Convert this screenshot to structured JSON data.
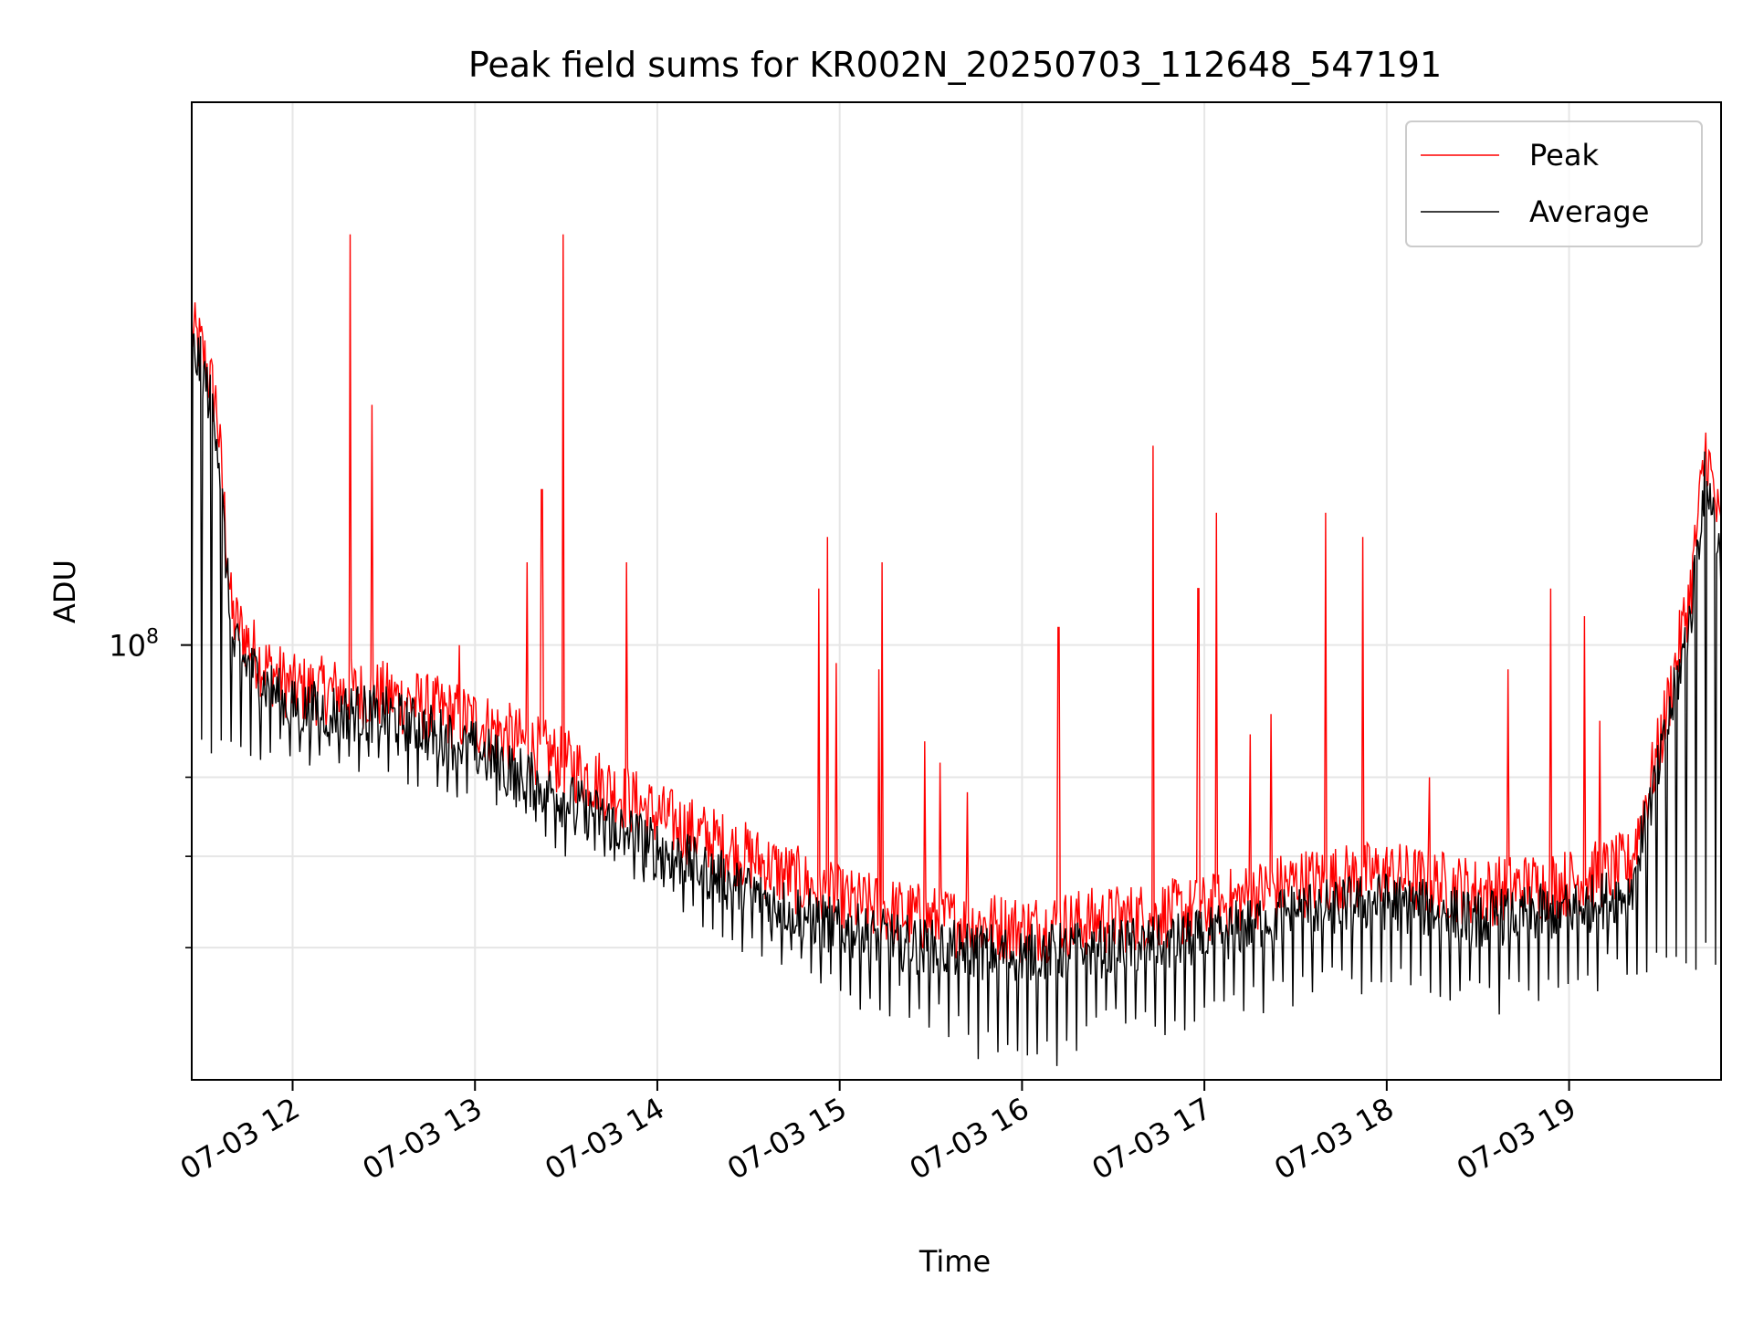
{
  "chart_data": {
    "type": "line",
    "title": "Peak field sums for KR002N_20250703_112648_547191",
    "xlabel": "Time",
    "ylabel": "ADU",
    "y_scale": "log",
    "y_tick_label": {
      "base": "10",
      "exponent": "8",
      "value": 100000000
    },
    "y_minor_ticks": [
      60000000,
      70000000,
      80000000
    ],
    "ylim": [
      48000000,
      250000000
    ],
    "xlim": [
      "2025-07-03 11:26:48",
      "2025-07-03 19:50:00"
    ],
    "x_ticks": [
      {
        "label": "07-03 12",
        "time": "2025-07-03 12:00"
      },
      {
        "label": "07-03 13",
        "time": "2025-07-03 13:00"
      },
      {
        "label": "07-03 14",
        "time": "2025-07-03 14:00"
      },
      {
        "label": "07-03 15",
        "time": "2025-07-03 15:00"
      },
      {
        "label": "07-03 16",
        "time": "2025-07-03 16:00"
      },
      {
        "label": "07-03 17",
        "time": "2025-07-03 17:00"
      },
      {
        "label": "07-03 18",
        "time": "2025-07-03 18:00"
      },
      {
        "label": "07-03 19",
        "time": "2025-07-03 19:00"
      }
    ],
    "grid": true,
    "legend_position": "top-right",
    "series": [
      {
        "name": "Peak",
        "color": "#ff0000",
        "baseline": [
          [
            "2025-07-03 11:26:48",
            170000000
          ],
          [
            "2025-07-03 11:30",
            165000000
          ],
          [
            "2025-07-03 11:35",
            150000000
          ],
          [
            "2025-07-03 11:40",
            105000000
          ],
          [
            "2025-07-03 11:50",
            97000000
          ],
          [
            "2025-07-03 12:00",
            93000000
          ],
          [
            "2025-07-03 12:30",
            92000000
          ],
          [
            "2025-07-03 13:00",
            88000000
          ],
          [
            "2025-07-03 13:30",
            82000000
          ],
          [
            "2025-07-03 14:00",
            75000000
          ],
          [
            "2025-07-03 14:30",
            70000000
          ],
          [
            "2025-07-03 15:00",
            65000000
          ],
          [
            "2025-07-03 15:30",
            63000000
          ],
          [
            "2025-07-03 16:00",
            62000000
          ],
          [
            "2025-07-03 16:30",
            63000000
          ],
          [
            "2025-07-03 17:00",
            64000000
          ],
          [
            "2025-07-03 17:30",
            67000000
          ],
          [
            "2025-07-03 18:00",
            68000000
          ],
          [
            "2025-07-03 18:15",
            67000000
          ],
          [
            "2025-07-03 18:30",
            66000000
          ],
          [
            "2025-07-03 19:00",
            67000000
          ],
          [
            "2025-07-03 19:20",
            69000000
          ],
          [
            "2025-07-03 19:30",
            85000000
          ],
          [
            "2025-07-03 19:40",
            110000000
          ],
          [
            "2025-07-03 19:45",
            140000000
          ],
          [
            "2025-07-03 19:50",
            120000000
          ]
        ],
        "spikes": [
          [
            "2025-07-03 12:19",
            200000000
          ],
          [
            "2025-07-03 12:26",
            150000000
          ],
          [
            "2025-07-03 12:55",
            100000000
          ],
          [
            "2025-07-03 13:17",
            115000000
          ],
          [
            "2025-07-03 13:22",
            130000000
          ],
          [
            "2025-07-03 13:29",
            200000000
          ],
          [
            "2025-07-03 13:50",
            115000000
          ],
          [
            "2025-07-03 14:53",
            110000000
          ],
          [
            "2025-07-03 14:56",
            120000000
          ],
          [
            "2025-07-03 14:59",
            97000000
          ],
          [
            "2025-07-03 15:13",
            96000000
          ],
          [
            "2025-07-03 15:14",
            115000000
          ],
          [
            "2025-07-03 15:28",
            85000000
          ],
          [
            "2025-07-03 15:33",
            82000000
          ],
          [
            "2025-07-03 15:42",
            78000000
          ],
          [
            "2025-07-03 16:12",
            103000000
          ],
          [
            "2025-07-03 16:43",
            140000000
          ],
          [
            "2025-07-03 16:58",
            110000000
          ],
          [
            "2025-07-03 17:04",
            125000000
          ],
          [
            "2025-07-03 17:15",
            86000000
          ],
          [
            "2025-07-03 17:22",
            89000000
          ],
          [
            "2025-07-03 17:40",
            125000000
          ],
          [
            "2025-07-03 17:52",
            120000000
          ],
          [
            "2025-07-03 18:14",
            80000000
          ],
          [
            "2025-07-03 18:40",
            96000000
          ],
          [
            "2025-07-03 18:54",
            110000000
          ],
          [
            "2025-07-03 19:05",
            105000000
          ],
          [
            "2025-07-03 19:10",
            88000000
          ]
        ]
      },
      {
        "name": "Average",
        "color": "#000000",
        "baseline": [
          [
            "2025-07-03 11:26:48",
            165000000
          ],
          [
            "2025-07-03 11:30",
            160000000
          ],
          [
            "2025-07-03 11:35",
            145000000
          ],
          [
            "2025-07-03 11:40",
            100000000
          ],
          [
            "2025-07-03 11:50",
            94000000
          ],
          [
            "2025-07-03 12:00",
            90000000
          ],
          [
            "2025-07-03 12:30",
            89000000
          ],
          [
            "2025-07-03 13:00",
            84000000
          ],
          [
            "2025-07-03 13:30",
            77000000
          ],
          [
            "2025-07-03 14:00",
            71000000
          ],
          [
            "2025-07-03 14:30",
            66000000
          ],
          [
            "2025-07-03 15:00",
            62000000
          ],
          [
            "2025-07-03 15:30",
            60000000
          ],
          [
            "2025-07-03 16:00",
            59500000
          ],
          [
            "2025-07-03 16:30",
            60000000
          ],
          [
            "2025-07-03 17:00",
            61000000
          ],
          [
            "2025-07-03 17:30",
            64000000
          ],
          [
            "2025-07-03 18:00",
            65000000
          ],
          [
            "2025-07-03 18:15",
            64000000
          ],
          [
            "2025-07-03 18:30",
            63000000
          ],
          [
            "2025-07-03 19:00",
            64000000
          ],
          [
            "2025-07-03 19:20",
            66000000
          ],
          [
            "2025-07-03 19:30",
            82000000
          ],
          [
            "2025-07-03 19:40",
            105000000
          ],
          [
            "2025-07-03 19:45",
            135000000
          ],
          [
            "2025-07-03 19:50",
            115000000
          ]
        ],
        "dips": [
          [
            "2025-07-03 12:00",
            84000000
          ],
          [
            "2025-07-03 12:40",
            81000000
          ],
          [
            "2025-07-03 13:00",
            79000000
          ],
          [
            "2025-07-03 13:30",
            72000000
          ],
          [
            "2025-07-03 14:00",
            67000000
          ],
          [
            "2025-07-03 14:30",
            61000000
          ],
          [
            "2025-07-03 15:00",
            56000000
          ],
          [
            "2025-07-03 15:30",
            54000000
          ],
          [
            "2025-07-03 15:40",
            52000000
          ],
          [
            "2025-07-03 16:00",
            49000000
          ],
          [
            "2025-07-03 16:20",
            51000000
          ],
          [
            "2025-07-03 16:30",
            53000000
          ],
          [
            "2025-07-03 17:00",
            53000000
          ],
          [
            "2025-07-03 17:30",
            56000000
          ],
          [
            "2025-07-03 18:00",
            57000000
          ],
          [
            "2025-07-03 18:15",
            56000000
          ],
          [
            "2025-07-03 18:30",
            55000000
          ],
          [
            "2025-07-03 19:00",
            56000000
          ],
          [
            "2025-07-03 19:20",
            59000000
          ]
        ]
      }
    ]
  }
}
